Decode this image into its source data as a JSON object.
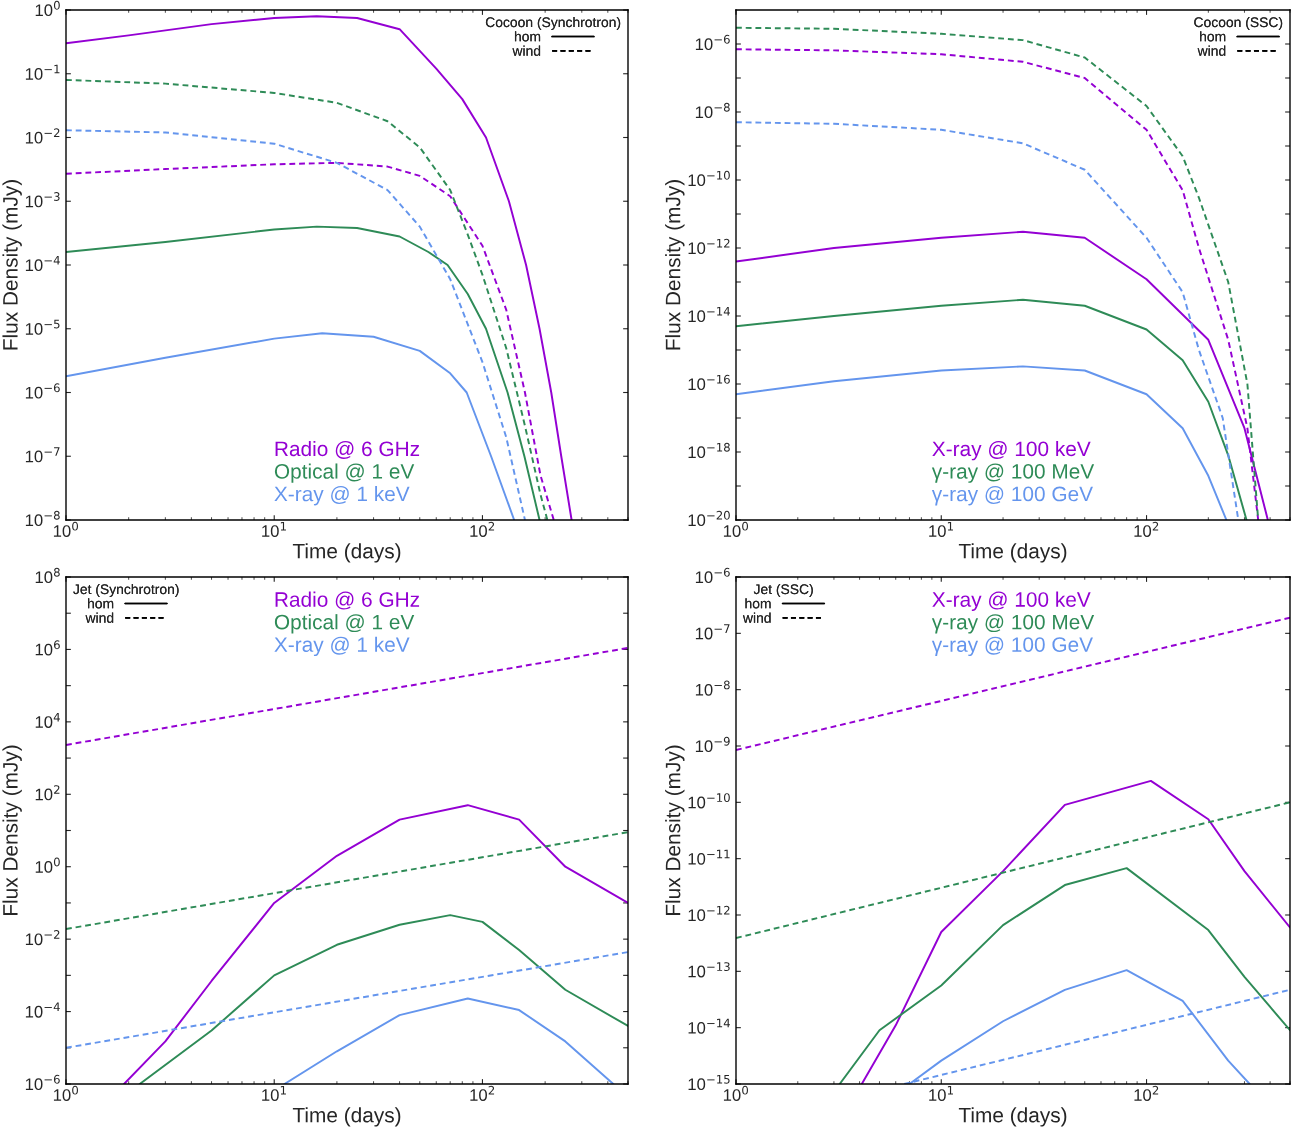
{
  "chart_data": [
    {
      "type": "line",
      "xlabel": "Time (days)",
      "ylabel": "Flux Density (mJy)",
      "legend_title": "Cocoon (Synchrotron)",
      "annotations": [
        "hom",
        "wind"
      ],
      "log": "xy",
      "grid": false,
      "legend": "bottom",
      "xlim": [
        1,
        500
      ],
      "ylim": [
        1e-08,
        1
      ],
      "xticks": [
        {
          "value": 1,
          "label": "10$^{0}$"
        },
        {
          "value": 10,
          "label": "10$^{1}$"
        },
        {
          "value": 100,
          "label": "10$^{2}$"
        }
      ],
      "yticks": [
        {
          "value": 1e-08,
          "label": "10$^{−8}$"
        },
        {
          "value": 1e-07,
          "label": "10$^{−7}$"
        },
        {
          "value": 1e-06,
          "label": "10$^{−6}$"
        },
        {
          "value": 1e-05,
          "label": "10$^{−5}$"
        },
        {
          "value": 0.0001,
          "label": "10$^{−4}$"
        },
        {
          "value": 0.001,
          "label": "10$^{−3}$"
        },
        {
          "value": 0.01,
          "label": "10$^{−2}$"
        },
        {
          "value": 0.1,
          "label": "10$^{−1}$"
        },
        {
          "value": 1,
          "label": "10$^{0}$"
        }
      ],
      "series": [
        {
          "name": "Radio @ 6 GHz",
          "color": "#9400d3",
          "line_style": "solid",
          "x": [
            1,
            2,
            5,
            10,
            16,
            25,
            40,
            60,
            80,
            104,
            134,
            162,
            188,
            214,
            239,
            268
          ],
          "values": [
            0.3,
            0.4,
            0.6,
            0.75,
            0.8,
            0.75,
            0.5,
            0.12,
            0.04,
            0.01,
            0.001,
            0.0001,
            1e-05,
            1e-06,
            1e-07,
            1e-08
          ]
        },
        {
          "name": "Optical @ 1 eV",
          "color": "#2e8b57",
          "line_style": "solid",
          "x": [
            1,
            3,
            10,
            16,
            25,
            40,
            55,
            68,
            85,
            104,
            132,
            159,
            188
          ],
          "values": [
            0.00016,
            0.00023,
            0.00036,
            0.0004,
            0.00038,
            0.00028,
            0.00016,
            0.0001,
            3.5e-05,
            1e-05,
            1e-06,
            1e-07,
            1e-08
          ]
        },
        {
          "name": "X-ray @ 1 keV",
          "color": "#6495ed",
          "line_style": "solid",
          "x": [
            1,
            3,
            10,
            17,
            30,
            50,
            70,
            84,
            110,
            142
          ],
          "values": [
            1.8e-06,
            3.5e-06,
            7e-06,
            8.5e-06,
            7.5e-06,
            4.5e-06,
            2e-06,
            1e-06,
            1e-07,
            1e-08
          ]
        },
        {
          "color": "#9400d3",
          "line_style": "dashed",
          "x": [
            1,
            3,
            10,
            20,
            35,
            50,
            70,
            100,
            130,
            160,
            190,
            220
          ],
          "values": [
            0.0027,
            0.0032,
            0.0038,
            0.004,
            0.0035,
            0.0025,
            0.0012,
            0.0002,
            2e-05,
            1e-06,
            5e-08,
            1e-08
          ]
        },
        {
          "color": "#2e8b57",
          "line_style": "dashed",
          "x": [
            1,
            3,
            10,
            20,
            35,
            50,
            70,
            85,
            100,
            130,
            160,
            190,
            205
          ],
          "values": [
            0.08,
            0.07,
            0.05,
            0.035,
            0.018,
            0.007,
            0.0015,
            0.0003,
            7e-05,
            5e-06,
            3e-07,
            2.5e-08,
            1e-08
          ]
        },
        {
          "color": "#6495ed",
          "line_style": "dashed",
          "x": [
            1,
            3,
            10,
            20,
            35,
            50,
            70,
            100,
            130,
            160
          ],
          "values": [
            0.013,
            0.012,
            0.008,
            0.004,
            0.0015,
            0.0004,
            6e-05,
            3e-06,
            2e-07,
            1e-08
          ]
        }
      ]
    },
    {
      "type": "line",
      "xlabel": "Time (days)",
      "ylabel": "Flux Density (mJy)",
      "legend_title": "Cocoon (SSC)",
      "annotations": [
        "hom",
        "wind"
      ],
      "log": "xy",
      "grid": false,
      "legend": "bottom",
      "xlim": [
        1,
        500
      ],
      "ylim": [
        1e-20,
        1e-05
      ],
      "xticks": [
        {
          "value": 1,
          "label": "10$^{0}$"
        },
        {
          "value": 10,
          "label": "10$^{1}$"
        },
        {
          "value": 100,
          "label": "10$^{2}$"
        }
      ],
      "yticks": [
        {
          "value": 1e-20,
          "label": "10$^{−20}$"
        },
        {
          "value": 1e-19,
          "label": null
        },
        {
          "value": 1e-18,
          "label": "10$^{−18}$"
        },
        {
          "value": 1e-17,
          "label": null
        },
        {
          "value": 1e-16,
          "label": "10$^{−16}$"
        },
        {
          "value": 1e-15,
          "label": null
        },
        {
          "value": 1e-14,
          "label": "10$^{−14}$"
        },
        {
          "value": 1e-13,
          "label": null
        },
        {
          "value": 1e-12,
          "label": "10$^{−12}$"
        },
        {
          "value": 1e-11,
          "label": null
        },
        {
          "value": 1e-10,
          "label": "10$^{−10}$"
        },
        {
          "value": 1e-09,
          "label": null
        },
        {
          "value": 1e-08,
          "label": "10$^{−8}$"
        },
        {
          "value": 1e-07,
          "label": null
        },
        {
          "value": 1e-06,
          "label": "10$^{−6}$"
        }
      ],
      "series": [
        {
          "name": "X-ray @ 100 keV",
          "color": "#9400d3",
          "line_style": "solid",
          "x": [
            1,
            3,
            10,
            25,
            50,
            100,
            200,
            300,
            390
          ],
          "values": [
            4e-13,
            1e-12,
            2e-12,
            3e-12,
            2e-12,
            1.2e-13,
            2e-15,
            5e-18,
            1e-20
          ]
        },
        {
          "name": "γ-ray @ 100 MeV",
          "color": "#2e8b57",
          "line_style": "solid",
          "x": [
            1,
            3,
            10,
            25,
            50,
            100,
            150,
            200,
            250,
            307
          ],
          "values": [
            5e-15,
            1e-14,
            2e-14,
            3e-14,
            2e-14,
            4e-15,
            5e-16,
            3e-17,
            8e-19,
            1e-20
          ]
        },
        {
          "name": "γ-ray @ 100 GeV",
          "color": "#6495ed",
          "line_style": "solid",
          "x": [
            1,
            3,
            10,
            25,
            50,
            100,
            150,
            200,
            245
          ],
          "values": [
            5e-17,
            1.2e-16,
            2.5e-16,
            3.3e-16,
            2.5e-16,
            5e-17,
            5e-18,
            2e-19,
            1e-20
          ]
        },
        {
          "color": "#9400d3",
          "line_style": "dashed",
          "x": [
            1,
            3,
            10,
            25,
            50,
            100,
            150,
            180,
            250,
            310,
            350
          ],
          "values": [
            7e-07,
            6.5e-07,
            5e-07,
            3e-07,
            1e-07,
            3e-09,
            5e-11,
            1e-12,
            2e-15,
            5e-18,
            1e-20
          ]
        },
        {
          "color": "#2e8b57",
          "line_style": "dashed",
          "x": [
            1,
            3,
            10,
            25,
            50,
            100,
            150,
            180,
            250,
            310,
            350
          ],
          "values": [
            3e-06,
            2.8e-06,
            2e-06,
            1.3e-06,
            4e-07,
            1.5e-08,
            5e-10,
            3e-11,
            1e-13,
            1e-16,
            1e-20
          ]
        },
        {
          "color": "#6495ed",
          "line_style": "dashed",
          "x": [
            1,
            3,
            10,
            25,
            50,
            100,
            150,
            180,
            235,
            280
          ],
          "values": [
            5e-09,
            4.5e-09,
            3e-09,
            1.2e-09,
            2e-10,
            2e-12,
            5e-14,
            1e-15,
            1e-17,
            1e-20
          ]
        }
      ]
    },
    {
      "type": "line",
      "xlabel": "Time (days)",
      "ylabel": "Flux Density (mJy)",
      "legend_title": "Jet (Synchrotron)",
      "annotations": [
        "hom",
        "wind"
      ],
      "log": "xy",
      "grid": false,
      "legend": "top",
      "xlim": [
        1,
        500
      ],
      "ylim": [
        1e-06,
        100000000.0
      ],
      "xticks": [
        {
          "value": 1,
          "label": "10$^{0}$"
        },
        {
          "value": 10,
          "label": "10$^{1}$"
        },
        {
          "value": 100,
          "label": "10$^{2}$"
        }
      ],
      "yticks": [
        {
          "value": 1e-06,
          "label": "10$^{−6}$"
        },
        {
          "value": 1e-05,
          "label": null
        },
        {
          "value": 0.0001,
          "label": "10$^{−4}$"
        },
        {
          "value": 0.001,
          "label": null
        },
        {
          "value": 0.01,
          "label": "10$^{−2}$"
        },
        {
          "value": 0.1,
          "label": null
        },
        {
          "value": 1,
          "label": "10$^{0}$"
        },
        {
          "value": 10,
          "label": null
        },
        {
          "value": 100,
          "label": "10$^{2}$"
        },
        {
          "value": 1000,
          "label": null
        },
        {
          "value": 10000,
          "label": "10$^{4}$"
        },
        {
          "value": 100000,
          "label": null
        },
        {
          "value": 1000000,
          "label": "10$^{6}$"
        },
        {
          "value": 10000000,
          "label": null
        },
        {
          "value": 100000000,
          "label": "10$^{8}$"
        }
      ],
      "series": [
        {
          "name": "Radio @ 6 GHz",
          "color": "#9400d3",
          "line_style": "solid",
          "x": [
            1.9,
            3,
            5,
            10,
            20,
            40,
            85,
            150,
            250,
            500
          ],
          "values": [
            1e-06,
            1.5e-05,
            0.0007,
            0.1,
            2,
            20,
            50,
            20,
            1,
            0.1
          ]
        },
        {
          "name": "Optical @ 1 eV",
          "color": "#2e8b57",
          "line_style": "solid",
          "x": [
            2.26,
            5,
            10,
            20,
            40,
            70,
            100,
            150,
            250,
            500
          ],
          "values": [
            1e-06,
            3e-05,
            0.001,
            0.007,
            0.025,
            0.046,
            0.03,
            0.005,
            0.0004,
            4e-05
          ]
        },
        {
          "name": "X-ray @ 1 keV",
          "color": "#6495ed",
          "line_style": "solid",
          "x": [
            11.2,
            20,
            40,
            85,
            150,
            250,
            425
          ],
          "values": [
            1e-06,
            8e-06,
            8e-05,
            0.00023,
            0.00011,
            1.5e-05,
            1e-06
          ]
        },
        {
          "color": "#9400d3",
          "line_style": "dashed",
          "x": [
            1,
            500
          ],
          "values": [
            2300,
            1100000.0
          ]
        },
        {
          "color": "#2e8b57",
          "line_style": "dashed",
          "x": [
            1,
            500
          ],
          "values": [
            0.019,
            9
          ]
        },
        {
          "color": "#6495ed",
          "line_style": "dashed",
          "x": [
            1,
            500
          ],
          "values": [
            1e-05,
            0.0044
          ]
        }
      ]
    },
    {
      "type": "line",
      "xlabel": "Time (days)",
      "ylabel": "Flux Density (mJy)",
      "legend_title": "Jet (SSC)",
      "annotations": [
        "hom",
        "wind"
      ],
      "log": "xy",
      "grid": false,
      "legend": "top",
      "xlim": [
        1,
        500
      ],
      "ylim": [
        1e-15,
        1e-06
      ],
      "xticks": [
        {
          "value": 1,
          "label": "10$^{0}$"
        },
        {
          "value": 10,
          "label": "10$^{1}$"
        },
        {
          "value": 100,
          "label": "10$^{2}$"
        }
      ],
      "yticks": [
        {
          "value": 1e-15,
          "label": "10$^{−15}$"
        },
        {
          "value": 1e-14,
          "label": "10$^{−14}$"
        },
        {
          "value": 1e-13,
          "label": "10$^{−13}$"
        },
        {
          "value": 1e-12,
          "label": "10$^{−12}$"
        },
        {
          "value": 1e-11,
          "label": "10$^{−11}$"
        },
        {
          "value": 1e-10,
          "label": "10$^{−10}$"
        },
        {
          "value": 1e-09,
          "label": "10$^{−9}$"
        },
        {
          "value": 1e-08,
          "label": "10$^{−8}$"
        },
        {
          "value": 1e-07,
          "label": "10$^{−7}$"
        },
        {
          "value": 1e-06,
          "label": "10$^{−6}$"
        }
      ],
      "series": [
        {
          "name": "X-ray @ 100 keV",
          "color": "#9400d3",
          "line_style": "solid",
          "x": [
            4.1,
            6,
            10,
            20,
            40,
            105,
            200,
            300,
            500
          ],
          "values": [
            1e-15,
            1.1e-14,
            5e-13,
            6e-12,
            9e-11,
            2.4e-10,
            5e-11,
            6e-12,
            6e-13
          ]
        },
        {
          "name": "γ-ray @ 100 MeV",
          "color": "#2e8b57",
          "line_style": "solid",
          "x": [
            3.2,
            5,
            10,
            20,
            40,
            80,
            200,
            300,
            500
          ],
          "values": [
            1e-15,
            9e-15,
            5.6e-14,
            6.6e-13,
            3.4e-12,
            6.8e-12,
            5.4e-13,
            8e-14,
            9e-15
          ]
        },
        {
          "name": "γ-ray @ 100 GeV",
          "color": "#6495ed",
          "line_style": "solid",
          "x": [
            7,
            10,
            20,
            40,
            80,
            150,
            250,
            318
          ],
          "values": [
            1e-15,
            2.6e-15,
            1.3e-14,
            4.7e-14,
            1.05e-13,
            3e-14,
            2.6e-15,
            1e-15
          ]
        },
        {
          "color": "#9400d3",
          "line_style": "dashed",
          "x": [
            1,
            500
          ],
          "values": [
            8.5e-10,
            1.9e-07
          ]
        },
        {
          "color": "#2e8b57",
          "line_style": "dashed",
          "x": [
            1,
            500
          ],
          "values": [
            3.9e-13,
            1e-10
          ]
        },
        {
          "color": "#6495ed",
          "line_style": "dashed",
          "x": [
            6.6,
            500
          ],
          "values": [
            1e-15,
            4.7e-14
          ]
        }
      ]
    }
  ]
}
